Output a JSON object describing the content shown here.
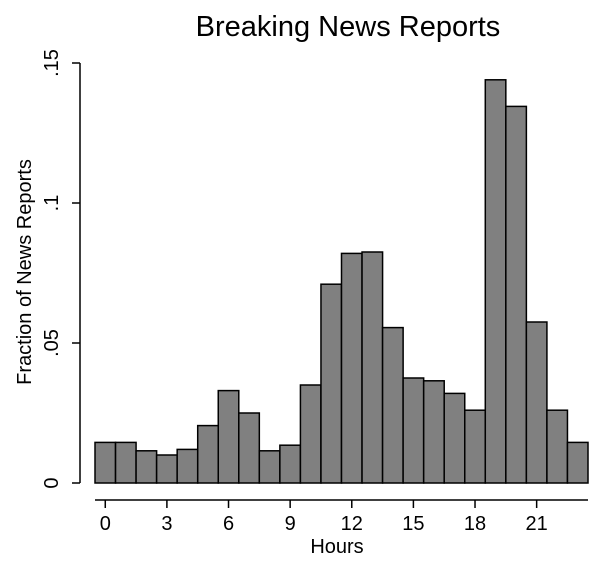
{
  "chart_data": {
    "type": "bar",
    "title": "Breaking News Reports",
    "xlabel": "Hours",
    "ylabel": "Fraction of News Reports",
    "x": [
      0,
      1,
      2,
      3,
      4,
      5,
      6,
      7,
      8,
      9,
      10,
      11,
      12,
      13,
      14,
      15,
      16,
      17,
      18,
      19,
      20,
      21,
      22,
      23
    ],
    "values": [
      0.0145,
      0.0145,
      0.0115,
      0.01,
      0.012,
      0.0205,
      0.033,
      0.025,
      0.0115,
      0.0135,
      0.035,
      0.071,
      0.082,
      0.0825,
      0.0555,
      0.0375,
      0.0365,
      0.032,
      0.026,
      0.144,
      0.1345,
      0.0575,
      0.026,
      0.0145
    ],
    "xticks": [
      0,
      3,
      6,
      9,
      12,
      15,
      18,
      21
    ],
    "xtick_labels": [
      "0",
      "3",
      "6",
      "9",
      "12",
      "15",
      "18",
      "21"
    ],
    "yticks": [
      0,
      0.05,
      0.1,
      0.15
    ],
    "ytick_labels": [
      "0",
      ".05",
      ".1",
      ".15"
    ],
    "xlim": [
      -1,
      24
    ],
    "ylim": [
      0,
      0.15
    ],
    "grid": false,
    "legend": "none",
    "colors": {
      "bar_fill": "#808080",
      "bar_edge": "#000000",
      "axis": "#000000",
      "background": "#ffffff"
    }
  }
}
